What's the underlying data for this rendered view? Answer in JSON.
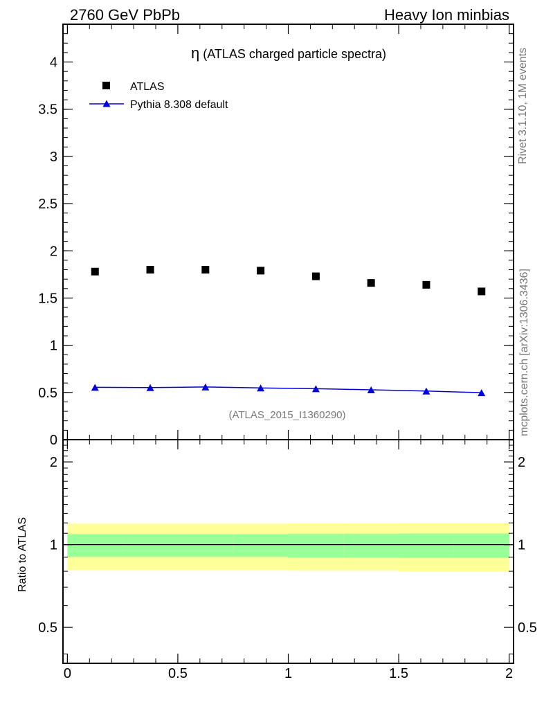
{
  "header": {
    "left": "2760 GeV PbPb",
    "right": "Heavy Ion minbias"
  },
  "side_labels": {
    "top": "Rivet 3.1.10,  1M events",
    "bottom": "mcplots.cern.ch [arXiv:1306.3436]"
  },
  "colors": {
    "data": "#000000",
    "mc": "#0000dd",
    "band_inner": "#99ff99",
    "band_outer": "#ffff99"
  },
  "chart_data": [
    {
      "type": "scatter",
      "title_symbol": "η",
      "title": " (ATLAS charged particle spectra)",
      "analysis_label": "(ATLAS_2015_I1360290)",
      "xlabel": "",
      "ylabel": "",
      "xlim": [
        -0.02,
        2.02
      ],
      "ylim": [
        0,
        4.4
      ],
      "yticks": [
        {
          "v": 0,
          "label": "0"
        },
        {
          "v": 0.5,
          "label": "0.5"
        },
        {
          "v": 1,
          "label": "1"
        },
        {
          "v": 1.5,
          "label": "1.5"
        },
        {
          "v": 2,
          "label": "2"
        },
        {
          "v": 2.5,
          "label": "2.5"
        },
        {
          "v": 3,
          "label": "3"
        },
        {
          "v": 3.5,
          "label": "3.5"
        },
        {
          "v": 4,
          "label": "4"
        }
      ],
      "legend": {
        "position": "top-left",
        "entries": [
          "ATLAS",
          "Pythia 8.308 default"
        ]
      },
      "series": [
        {
          "name": "ATLAS",
          "marker": "square",
          "x": [
            0.125,
            0.375,
            0.625,
            0.875,
            1.125,
            1.375,
            1.625,
            1.875
          ],
          "values": [
            1.78,
            1.8,
            1.8,
            1.79,
            1.73,
            1.66,
            1.64,
            1.57
          ]
        },
        {
          "name": "Pythia 8.308 default",
          "marker": "triangle",
          "x": [
            0.125,
            0.375,
            0.625,
            0.875,
            1.125,
            1.375,
            1.625,
            1.875
          ],
          "values": [
            0.555,
            0.552,
            0.558,
            0.548,
            0.54,
            0.528,
            0.515,
            0.498
          ]
        }
      ]
    },
    {
      "type": "area",
      "ylabel": "Ratio to ATLAS",
      "xlim": [
        -0.02,
        2.02
      ],
      "ylim": [
        0.37,
        2.41
      ],
      "xticks": [
        {
          "v": 0,
          "label": "0"
        },
        {
          "v": 0.5,
          "label": "0.5"
        },
        {
          "v": 1,
          "label": "1"
        },
        {
          "v": 1.5,
          "label": "1.5"
        },
        {
          "v": 2,
          "label": "2"
        }
      ],
      "yticks": [
        {
          "v": 0.5,
          "label": "0.5"
        },
        {
          "v": 1,
          "label": "1"
        },
        {
          "v": 2,
          "label": "2"
        }
      ],
      "reference": 1.0,
      "bins": [
        0,
        0.25,
        0.5,
        0.75,
        1.0,
        1.25,
        1.5,
        1.75,
        2.0
      ],
      "band_inner_low": [
        0.902,
        0.902,
        0.902,
        0.902,
        0.898,
        0.898,
        0.896,
        0.896
      ],
      "band_inner_high": [
        1.092,
        1.092,
        1.092,
        1.092,
        1.096,
        1.096,
        1.098,
        1.098
      ],
      "band_outer_low": [
        0.808,
        0.808,
        0.808,
        0.808,
        0.804,
        0.804,
        0.8,
        0.8
      ],
      "band_outer_high": [
        1.192,
        1.192,
        1.192,
        1.192,
        1.196,
        1.196,
        1.2,
        1.2
      ]
    }
  ]
}
